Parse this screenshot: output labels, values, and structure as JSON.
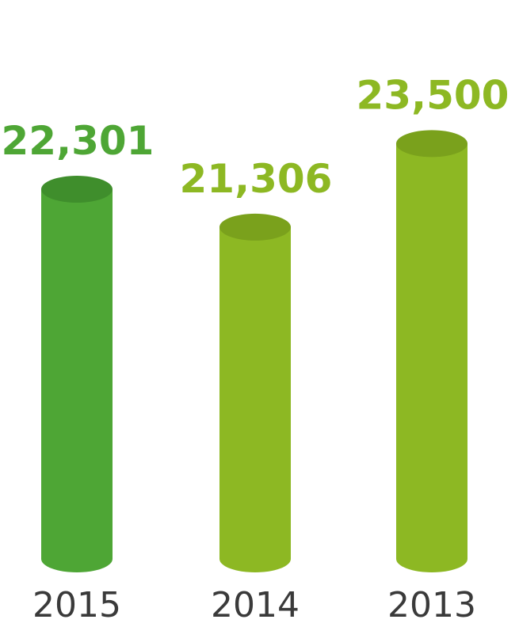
{
  "chart_data": {
    "type": "bar",
    "style": "cylinder",
    "categories": [
      "2015",
      "2014",
      "2013"
    ],
    "values": [
      22301,
      21306,
      23500
    ],
    "value_labels": [
      "22,301",
      "21,306",
      "23,500"
    ],
    "colors": {
      "highlight_bar": "#4ea635",
      "highlight_bar_top": "#3f8e2c",
      "bar": "#8db823",
      "bar_top": "#7aa11c",
      "highlight_label": "#4ea635",
      "label": "#8db823",
      "category_text": "#3a3a3a"
    },
    "highlighted_category": "2015",
    "title": "",
    "xlabel": "",
    "ylabel": "",
    "grid": false,
    "legend": "none"
  }
}
